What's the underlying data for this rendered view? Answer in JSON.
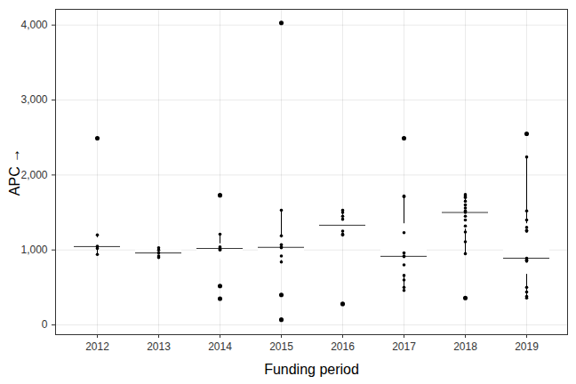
{
  "chart_data": {
    "type": "box",
    "x_label": "Funding period",
    "y_label": "APC",
    "categories": [
      "2012",
      "2013",
      "2014",
      "2015",
      "2016",
      "2017",
      "2018",
      "2019"
    ],
    "values": [
      [
        2490,
        1200,
        1050,
        1040,
        1020,
        940
      ],
      [
        1030,
        1000,
        960,
        920,
        900
      ],
      [
        1730,
        1210,
        1040,
        1030,
        1010,
        1000,
        520,
        350
      ],
      [
        4030,
        1530,
        1190,
        1070,
        1040,
        1030,
        920,
        840,
        400,
        70
      ],
      [
        1530,
        1500,
        1450,
        1410,
        1250,
        1210,
        1200,
        280
      ],
      [
        2490,
        1720,
        1710,
        1230,
        960,
        920,
        910,
        800,
        660,
        600,
        500,
        460
      ],
      [
        1740,
        1720,
        1700,
        1650,
        1600,
        1560,
        1520,
        1500,
        1450,
        1400,
        1320,
        1240,
        1110,
        950,
        360
      ],
      [
        2550,
        2240,
        1520,
        1400,
        1300,
        1260,
        1250,
        890,
        870,
        860,
        850,
        500,
        440,
        380,
        360
      ]
    ],
    "color": "#000000",
    "ylim": [
      -130,
      4210
    ],
    "yticks": [
      0,
      1000,
      2000,
      3000,
      4000
    ],
    "grid": true
  }
}
